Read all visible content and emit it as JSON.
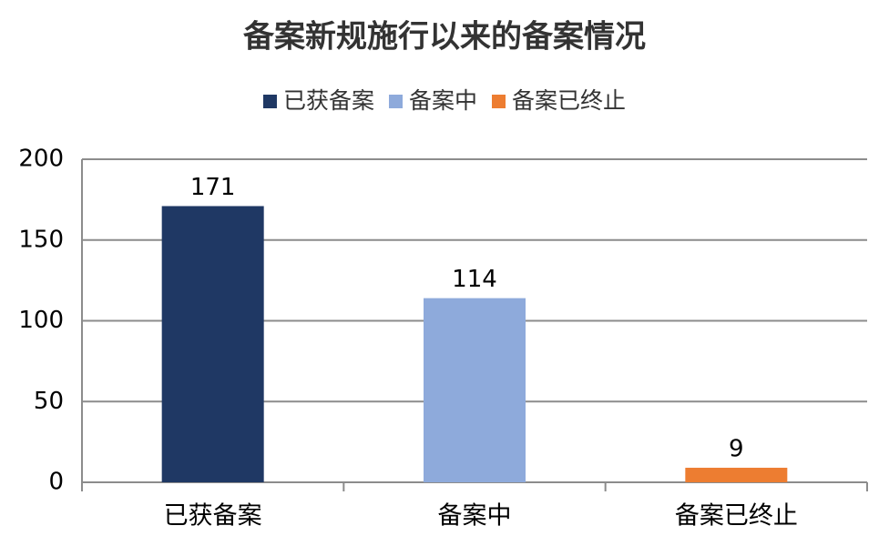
{
  "chart_data": {
    "type": "bar",
    "title": "备案新规施行以来的备案情况",
    "categories": [
      "已获备案",
      "备案中",
      "备案已终止"
    ],
    "values": [
      171,
      114,
      9
    ],
    "colors": [
      "#1f3864",
      "#8eaadb",
      "#ed7d31"
    ],
    "ylim": [
      0,
      200
    ],
    "yticks": [
      0,
      50,
      100,
      150,
      200
    ],
    "grid": true
  }
}
